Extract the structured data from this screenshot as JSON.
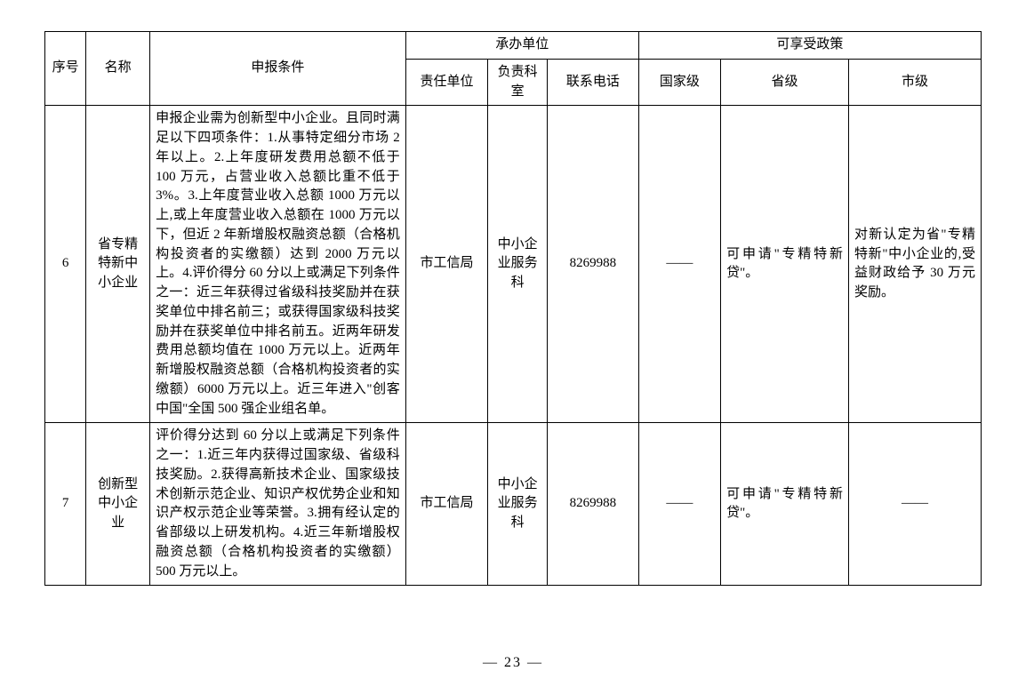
{
  "header": {
    "seq": "序号",
    "name": "名称",
    "conditions": "申报条件",
    "host_unit": "承办单位",
    "responsible_unit": "责任单位",
    "responsible_office": "负责科室",
    "phone": "联系电话",
    "policy": "可享受政策",
    "national": "国家级",
    "provincial": "省级",
    "city": "市级"
  },
  "rows": [
    {
      "seq": "6",
      "name": "省专精特新中小企业",
      "conditions": "申报企业需为创新型中小企业。且同时满足以下四项条件：1.从事特定细分市场 2 年以上。2.上年度研发费用总额不低于 100 万元，占营业收入总额比重不低于 3%。3.上年度营业收入总额 1000 万元以上,或上年度营业收入总额在 1000 万元以下，但近 2 年新增股权融资总额（合格机构投资者的实缴额）达到 2000 万元以上。4.评价得分 60 分以上或满足下列条件之一：近三年获得过省级科技奖励并在获奖单位中排名前三；或获得国家级科技奖励并在获奖单位中排名前五。近两年研发费用总额均值在 1000 万元以上。近两年新增股权融资总额（合格机构投资者的实缴额）6000 万元以上。近三年进入\"创客中国\"全国 500 强企业组名单。",
      "responsible_unit": "市工信局",
      "responsible_office": "中小企业服务科",
      "phone": "8269988",
      "national": "——",
      "provincial": "可申请\"专精特新贷\"。",
      "city": "对新认定为省\"专精特新\"中小企业的,受益财政给予 30 万元奖励。"
    },
    {
      "seq": "7",
      "name": "创新型中小企业",
      "conditions": "评价得分达到 60 分以上或满足下列条件之一：1.近三年内获得过国家级、省级科技奖励。2.获得高新技术企业、国家级技术创新示范企业、知识产权优势企业和知识产权示范企业等荣誉。3.拥有经认定的省部级以上研发机构。4.近三年新增股权融资总额（合格机构投资者的实缴额）500 万元以上。",
      "responsible_unit": "市工信局",
      "responsible_office": "中小企业服务科",
      "phone": "8269988",
      "national": "——",
      "provincial": "可申请\"专精特新贷\"。",
      "city": "——"
    }
  ],
  "page_number": "— 23 —"
}
